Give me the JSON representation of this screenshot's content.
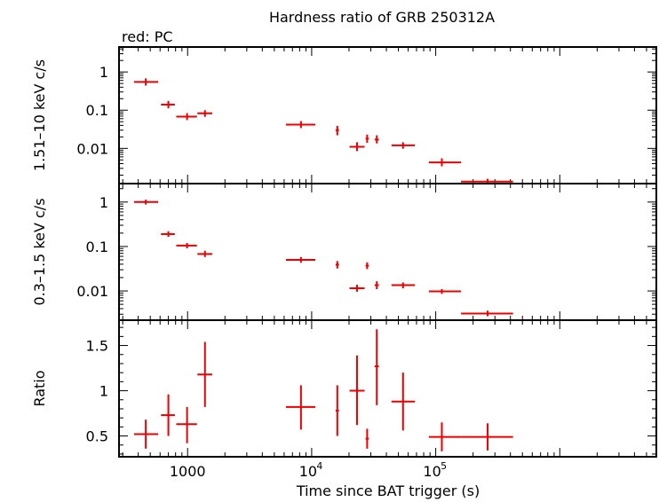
{
  "chart_data": {
    "type": "scatter",
    "title": "Hardness ratio of GRB 250312A",
    "legend_note": "red: PC",
    "xlabel": "Time since BAT trigger (s)",
    "x_scale": "log",
    "xlim": [
      280,
      6000000
    ],
    "x_ticks": [
      {
        "value": 1000,
        "label": "1000",
        "base": "",
        "exp": ""
      },
      {
        "value": 10000,
        "label": "",
        "base": "10",
        "exp": "4"
      },
      {
        "value": 100000,
        "label": "",
        "base": "10",
        "exp": "5"
      }
    ],
    "series_color": "#ee0000",
    "panels": [
      {
        "ylabel": "1.51–10 keV c/s",
        "y_scale": "log",
        "ylim": [
          0.0012,
          4.5
        ],
        "y_ticks": [
          {
            "value": 1,
            "label": "1"
          },
          {
            "value": 0.1,
            "label": "0.1"
          },
          {
            "value": 0.01,
            "label": "0.01"
          }
        ],
        "points": [
          {
            "x": 460,
            "xlo": 370,
            "xhi": 580,
            "y": 0.55,
            "ylo": 0.44,
            "yhi": 0.68
          },
          {
            "x": 700,
            "xlo": 610,
            "xhi": 790,
            "y": 0.14,
            "ylo": 0.112,
            "yhi": 0.175
          },
          {
            "x": 990,
            "xlo": 810,
            "xhi": 1190,
            "y": 0.068,
            "ylo": 0.055,
            "yhi": 0.084
          },
          {
            "x": 1380,
            "xlo": 1200,
            "xhi": 1580,
            "y": 0.083,
            "ylo": 0.067,
            "yhi": 0.1
          },
          {
            "x": 8200,
            "xlo": 6200,
            "xhi": 10700,
            "y": 0.042,
            "ylo": 0.034,
            "yhi": 0.052
          },
          {
            "x": 16100,
            "xlo": 15600,
            "xhi": 16600,
            "y": 0.03,
            "ylo": 0.022,
            "yhi": 0.039
          },
          {
            "x": 23200,
            "xlo": 20200,
            "xhi": 26700,
            "y": 0.011,
            "ylo": 0.0085,
            "yhi": 0.0145
          },
          {
            "x": 28000,
            "xlo": 27200,
            "xhi": 28900,
            "y": 0.018,
            "ylo": 0.014,
            "yhi": 0.023
          },
          {
            "x": 33500,
            "xlo": 32200,
            "xhi": 34800,
            "y": 0.017,
            "ylo": 0.0135,
            "yhi": 0.022
          },
          {
            "x": 54500,
            "xlo": 44000,
            "xhi": 68000,
            "y": 0.012,
            "ylo": 0.0098,
            "yhi": 0.0145
          },
          {
            "x": 112000,
            "xlo": 88000,
            "xhi": 160000,
            "y": 0.0043,
            "ylo": 0.0034,
            "yhi": 0.0055
          },
          {
            "x": 262000,
            "xlo": 160000,
            "xhi": 420000,
            "y": 0.00135,
            "ylo": 0.00122,
            "yhi": 0.0016
          }
        ]
      },
      {
        "ylabel": "0.3–1.5 keV c/s",
        "y_scale": "log",
        "ylim": [
          0.0022,
          2.6
        ],
        "y_ticks": [
          {
            "value": 1,
            "label": "1"
          },
          {
            "value": 0.1,
            "label": "0.1"
          },
          {
            "value": 0.01,
            "label": "0.01"
          }
        ],
        "points": [
          {
            "x": 460,
            "xlo": 370,
            "xhi": 580,
            "y": 1.0,
            "ylo": 0.88,
            "yhi": 1.13
          },
          {
            "x": 700,
            "xlo": 610,
            "xhi": 790,
            "y": 0.19,
            "ylo": 0.165,
            "yhi": 0.22
          },
          {
            "x": 990,
            "xlo": 810,
            "xhi": 1190,
            "y": 0.105,
            "ylo": 0.091,
            "yhi": 0.12
          },
          {
            "x": 1380,
            "xlo": 1200,
            "xhi": 1580,
            "y": 0.068,
            "ylo": 0.058,
            "yhi": 0.08
          },
          {
            "x": 8200,
            "xlo": 6200,
            "xhi": 10700,
            "y": 0.05,
            "ylo": 0.043,
            "yhi": 0.058
          },
          {
            "x": 16100,
            "xlo": 15600,
            "xhi": 16600,
            "y": 0.039,
            "ylo": 0.032,
            "yhi": 0.047
          },
          {
            "x": 23200,
            "xlo": 20200,
            "xhi": 26700,
            "y": 0.0115,
            "ylo": 0.0096,
            "yhi": 0.0138
          },
          {
            "x": 28000,
            "xlo": 27200,
            "xhi": 28900,
            "y": 0.037,
            "ylo": 0.031,
            "yhi": 0.044
          },
          {
            "x": 33500,
            "xlo": 32200,
            "xhi": 34800,
            "y": 0.0135,
            "ylo": 0.011,
            "yhi": 0.0165
          },
          {
            "x": 54500,
            "xlo": 44000,
            "xhi": 68000,
            "y": 0.0135,
            "ylo": 0.0115,
            "yhi": 0.0155
          },
          {
            "x": 112000,
            "xlo": 88000,
            "xhi": 160000,
            "y": 0.0098,
            "ylo": 0.0086,
            "yhi": 0.011
          },
          {
            "x": 262000,
            "xlo": 160000,
            "xhi": 420000,
            "y": 0.0031,
            "ylo": 0.0027,
            "yhi": 0.0036
          }
        ]
      },
      {
        "ylabel": "Ratio",
        "y_scale": "linear",
        "ylim": [
          0.27,
          1.78
        ],
        "y_ticks": [
          {
            "value": 1.5,
            "label": "1.5"
          },
          {
            "value": 1,
            "label": "1"
          },
          {
            "value": 0.5,
            "label": "0.5"
          }
        ],
        "points": [
          {
            "x": 460,
            "xlo": 370,
            "xhi": 580,
            "y": 0.52,
            "ylo": 0.36,
            "yhi": 0.68
          },
          {
            "x": 700,
            "xlo": 610,
            "xhi": 790,
            "y": 0.73,
            "ylo": 0.5,
            "yhi": 0.96
          },
          {
            "x": 990,
            "xlo": 810,
            "xhi": 1190,
            "y": 0.63,
            "ylo": 0.42,
            "yhi": 0.82
          },
          {
            "x": 1380,
            "xlo": 1200,
            "xhi": 1580,
            "y": 1.18,
            "ylo": 0.82,
            "yhi": 1.54
          },
          {
            "x": 8200,
            "xlo": 6200,
            "xhi": 10700,
            "y": 0.82,
            "ylo": 0.57,
            "yhi": 1.06
          },
          {
            "x": 16100,
            "xlo": 15600,
            "xhi": 16600,
            "y": 0.78,
            "ylo": 0.5,
            "yhi": 1.06
          },
          {
            "x": 23200,
            "xlo": 20200,
            "xhi": 26700,
            "y": 1.0,
            "ylo": 0.62,
            "yhi": 1.39
          },
          {
            "x": 28000,
            "xlo": 27200,
            "xhi": 28900,
            "y": 0.47,
            "ylo": 0.36,
            "yhi": 0.58
          },
          {
            "x": 33500,
            "xlo": 32200,
            "xhi": 34800,
            "y": 1.27,
            "ylo": 0.84,
            "yhi": 1.68
          },
          {
            "x": 54500,
            "xlo": 44000,
            "xhi": 68000,
            "y": 0.88,
            "ylo": 0.56,
            "yhi": 1.2
          },
          {
            "x": 112000,
            "xlo": 88000,
            "xhi": 160000,
            "y": 0.49,
            "ylo": 0.33,
            "yhi": 0.65
          },
          {
            "x": 262000,
            "xlo": 160000,
            "xhi": 420000,
            "y": 0.49,
            "ylo": 0.34,
            "yhi": 0.64
          }
        ]
      }
    ]
  }
}
